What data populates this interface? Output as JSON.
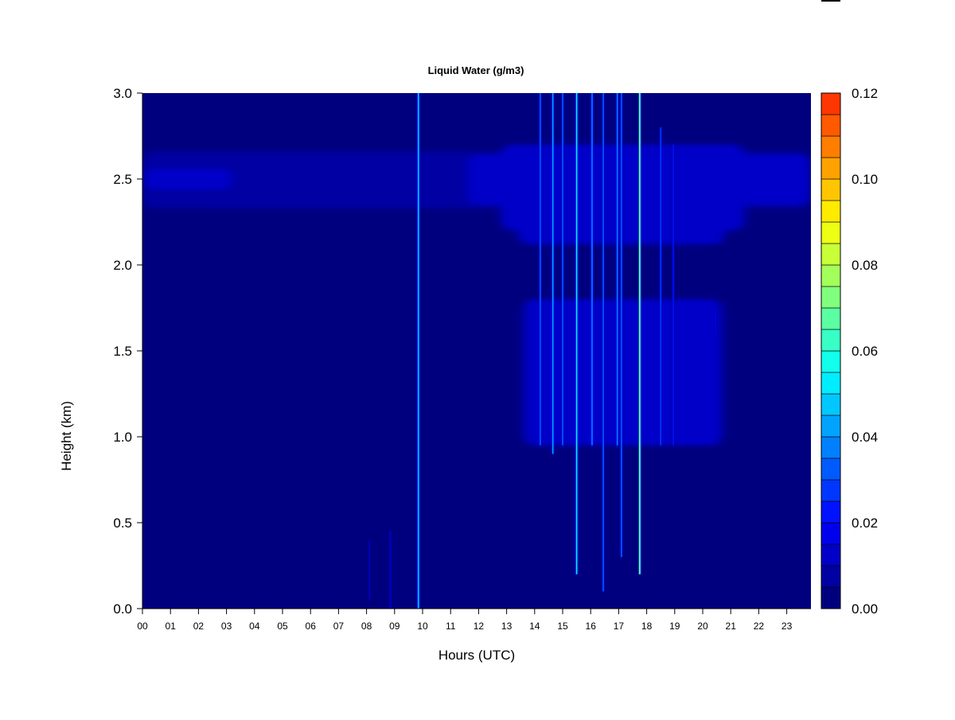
{
  "chart_data": {
    "type": "heatmap",
    "title": "Liquid Water (g/m3)",
    "xlabel": "Hours (UTC)",
    "ylabel": "Height (km)",
    "x_tick_labels": [
      "00",
      "01",
      "02",
      "03",
      "04",
      "05",
      "06",
      "07",
      "08",
      "09",
      "10",
      "11",
      "12",
      "13",
      "14",
      "15",
      "16",
      "17",
      "18",
      "19",
      "20",
      "21",
      "22",
      "23"
    ],
    "xlim": [
      0,
      23.85
    ],
    "y_ticks": [
      0.0,
      0.5,
      1.0,
      1.5,
      2.0,
      2.5,
      3.0
    ],
    "y_tick_labels": [
      "0.0",
      "0.5",
      "1.0",
      "1.5",
      "2.0",
      "2.5",
      "3.0"
    ],
    "ylim": [
      0,
      3.0
    ],
    "colorbar": {
      "label_ticks": [
        "0.00",
        "0.02",
        "0.04",
        "0.06",
        "0.08",
        "0.10",
        "0.12"
      ],
      "range": [
        0,
        0.12
      ],
      "step": 0.005,
      "colors": [
        "#00007F",
        "#0000A3",
        "#0000C8",
        "#0000ED",
        "#0012FF",
        "#0037FF",
        "#005BFF",
        "#0080FF",
        "#00A4FF",
        "#00C8FF",
        "#00EDFF",
        "#12FFEB",
        "#37FFC6",
        "#5BFFA2",
        "#80FF7E",
        "#A4FF5A",
        "#C8FF36",
        "#EDFF12",
        "#FFEB00",
        "#FFC600",
        "#FFA200",
        "#FF7E00",
        "#FF5A00",
        "#FF3600",
        "#FF1200",
        "#ED0000",
        "#C80000",
        "#A30000"
      ]
    },
    "background_level": 0.0,
    "cloud_layers": [
      {
        "hour_start": 0.0,
        "hour_end": 23.85,
        "height_bottom": 2.33,
        "height_top": 2.66,
        "value": 0.006
      },
      {
        "hour_start": 0.0,
        "hour_end": 3.2,
        "height_bottom": 2.44,
        "height_top": 2.56,
        "value": 0.01
      },
      {
        "hour_start": 11.6,
        "hour_end": 23.85,
        "height_bottom": 2.35,
        "height_top": 2.64,
        "value": 0.011
      },
      {
        "hour_start": 12.8,
        "hour_end": 21.5,
        "height_bottom": 2.2,
        "height_top": 2.7,
        "value": 0.012
      },
      {
        "hour_start": 13.4,
        "hour_end": 20.8,
        "height_bottom": 2.12,
        "height_top": 2.6,
        "value": 0.013
      },
      {
        "hour_start": 13.6,
        "hour_end": 20.7,
        "height_bottom": 0.95,
        "height_top": 1.8,
        "value": 0.012
      }
    ],
    "spikes": [
      {
        "hour": 9.85,
        "height_bottom": 0.0,
        "height_top": 3.0,
        "value": 0.045
      },
      {
        "hour": 8.85,
        "height_bottom": 0.0,
        "height_top": 0.45,
        "value": 0.012
      },
      {
        "hour": 8.1,
        "height_bottom": 0.05,
        "height_top": 0.4,
        "value": 0.01
      },
      {
        "hour": 14.2,
        "height_bottom": 0.95,
        "height_top": 3.0,
        "value": 0.03
      },
      {
        "hour": 14.65,
        "height_bottom": 0.9,
        "height_top": 3.0,
        "value": 0.04
      },
      {
        "hour": 15.0,
        "height_bottom": 0.95,
        "height_top": 3.0,
        "value": 0.03
      },
      {
        "hour": 15.5,
        "height_bottom": 0.2,
        "height_top": 3.0,
        "value": 0.05
      },
      {
        "hour": 16.05,
        "height_bottom": 0.95,
        "height_top": 3.0,
        "value": 0.035
      },
      {
        "hour": 16.45,
        "height_bottom": 0.1,
        "height_top": 3.0,
        "value": 0.03
      },
      {
        "hour": 16.95,
        "height_bottom": 0.95,
        "height_top": 3.0,
        "value": 0.035
      },
      {
        "hour": 17.1,
        "height_bottom": 0.3,
        "height_top": 3.0,
        "value": 0.03
      },
      {
        "hour": 17.75,
        "height_bottom": 0.2,
        "height_top": 3.0,
        "value": 0.07
      },
      {
        "hour": 18.5,
        "height_bottom": 0.95,
        "height_top": 2.8,
        "value": 0.025
      },
      {
        "hour": 18.95,
        "height_bottom": 0.95,
        "height_top": 2.7,
        "value": 0.02
      },
      {
        "hour": 20.45,
        "height_bottom": 1.6,
        "height_top": 1.75,
        "value": 0.015
      }
    ]
  }
}
